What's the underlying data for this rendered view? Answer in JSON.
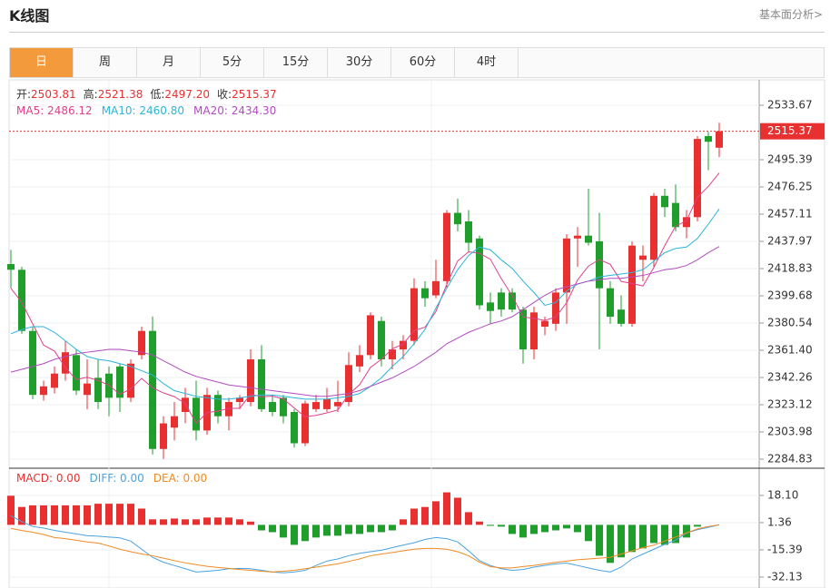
{
  "header": {
    "title": "K线图",
    "link": "基本面分析>"
  },
  "tabs": [
    "日",
    "周",
    "月",
    "5分",
    "15分",
    "30分",
    "60分",
    "4时"
  ],
  "active_tab": 0,
  "chart_data": [
    {
      "type": "candlestick",
      "info": [
        {
          "label": "开:",
          "value": "2503.81"
        },
        {
          "label": "高:",
          "value": "2521.38"
        },
        {
          "label": "低:",
          "value": "2497.20"
        },
        {
          "label": "收:",
          "value": "2515.37"
        }
      ],
      "up_color": "#e93030",
      "down_color": "#1f9e2c",
      "open": [
        2422,
        2418,
        2375,
        2330,
        2335,
        2345,
        2358,
        2330,
        2342,
        2345,
        2350,
        2328,
        2358,
        2375,
        2292,
        2307,
        2318,
        2328,
        2305,
        2330,
        2315,
        2325,
        2325,
        2355,
        2325,
        2328,
        2318,
        2296,
        2320,
        2320,
        2322,
        2325,
        2350,
        2358,
        2382,
        2355,
        2362,
        2368,
        2405,
        2400,
        2410,
        2458,
        2452,
        2440,
        2395,
        2402,
        2402,
        2390,
        2362,
        2378,
        2380,
        2402,
        2440,
        2442,
        2438,
        2405,
        2390,
        2380,
        2425,
        2425,
        2470,
        2465,
        2448,
        2455,
        2512,
        2503.81
      ],
      "high": [
        2432,
        2420,
        2378,
        2340,
        2350,
        2368,
        2362,
        2355,
        2355,
        2350,
        2352,
        2355,
        2378,
        2385,
        2315,
        2325,
        2335,
        2340,
        2335,
        2333,
        2328,
        2330,
        2362,
        2365,
        2330,
        2330,
        2320,
        2326,
        2330,
        2335,
        2340,
        2360,
        2365,
        2388,
        2385,
        2368,
        2372,
        2412,
        2410,
        2425,
        2460,
        2468,
        2460,
        2442,
        2402,
        2405,
        2405,
        2392,
        2392,
        2385,
        2405,
        2443,
        2448,
        2475,
        2458,
        2410,
        2400,
        2438,
        2435,
        2472,
        2475,
        2478,
        2460,
        2512,
        2515,
        2521.38
      ],
      "low": [
        2405,
        2373,
        2327,
        2326,
        2331,
        2340,
        2330,
        2320,
        2320,
        2315,
        2318,
        2325,
        2355,
        2288,
        2285,
        2298,
        2310,
        2298,
        2302,
        2310,
        2305,
        2320,
        2322,
        2318,
        2315,
        2310,
        2293,
        2294,
        2318,
        2318,
        2318,
        2322,
        2346,
        2355,
        2350,
        2348,
        2355,
        2365,
        2392,
        2398,
        2405,
        2445,
        2430,
        2390,
        2380,
        2385,
        2388,
        2352,
        2355,
        2372,
        2375,
        2380,
        2420,
        2435,
        2362,
        2380,
        2378,
        2378,
        2410,
        2420,
        2455,
        2445,
        2440,
        2452,
        2488,
        2497.2
      ],
      "close": [
        2418,
        2375,
        2330,
        2336,
        2345,
        2360,
        2333,
        2338,
        2325,
        2328,
        2328,
        2352,
        2375,
        2292,
        2310,
        2315,
        2328,
        2305,
        2330,
        2315,
        2325,
        2328,
        2355,
        2320,
        2318,
        2315,
        2296,
        2324,
        2325,
        2327,
        2325,
        2351,
        2358,
        2386,
        2355,
        2362,
        2368,
        2405,
        2398,
        2410,
        2458,
        2450,
        2437,
        2393,
        2389,
        2390,
        2390,
        2362,
        2388,
        2382,
        2402,
        2440,
        2442,
        2437,
        2405,
        2385,
        2380,
        2435,
        2428,
        2470,
        2462,
        2448,
        2455,
        2510,
        2508,
        2515.37
      ],
      "series": [
        {
          "name": "MA5: 2486.12",
          "color": "#e0408a",
          "values": [
            2405,
            2395,
            2380,
            2365,
            2360.8,
            2349.2,
            2340.8,
            2342.4,
            2340.2,
            2336.8,
            2330.4,
            2334.2,
            2341.6,
            2335,
            2331.4,
            2328.8,
            2324,
            2310,
            2317.6,
            2318.6,
            2320.6,
            2320.6,
            2330.6,
            2328.6,
            2329.2,
            2327.2,
            2320.8,
            2314.6,
            2315.6,
            2317.4,
            2319.4,
            2330.4,
            2337.2,
            2349.4,
            2355,
            2362.4,
            2365.8,
            2375.2,
            2377.6,
            2388.6,
            2407.8,
            2424.2,
            2430.6,
            2429.6,
            2425.4,
            2411.8,
            2399.8,
            2384.8,
            2383.8,
            2382.4,
            2384.8,
            2394.8,
            2410.8,
            2420.6,
            2425.2,
            2421.8,
            2409.8,
            2408.4,
            2406.6,
            2419.6,
            2435,
            2448.6,
            2452.6,
            2469,
            2476.6,
            2486.12
          ]
        },
        {
          "name": "MA10: 2460.80",
          "color": "#2bb5d8",
          "values": [
            2373,
            2376,
            2378,
            2378,
            2374,
            2368,
            2362,
            2357,
            2355,
            2354,
            2352,
            2350,
            2347,
            2344,
            2338,
            2333,
            2331,
            2329,
            2328,
            2327,
            2327,
            2328,
            2329,
            2330,
            2330,
            2329,
            2328,
            2327,
            2327,
            2327,
            2328,
            2329,
            2331,
            2336,
            2342,
            2350,
            2357,
            2366,
            2376,
            2391,
            2405,
            2418,
            2428,
            2434,
            2432,
            2425,
            2419,
            2410,
            2402,
            2393,
            2395,
            2403,
            2408,
            2410,
            2413,
            2414,
            2415,
            2416,
            2418,
            2424,
            2430,
            2433,
            2434,
            2440,
            2450,
            2460.8
          ]
        },
        {
          "name": "MA20: 2434.30",
          "color": "#b24bc0",
          "values": [
            2346,
            2348,
            2350,
            2352,
            2355,
            2357,
            2359,
            2360,
            2361,
            2362,
            2362,
            2361,
            2360,
            2358,
            2354,
            2350,
            2346,
            2343,
            2341,
            2339,
            2337,
            2336,
            2335,
            2334,
            2333,
            2332,
            2331,
            2330,
            2329,
            2329,
            2330,
            2331,
            2333,
            2336,
            2339,
            2342,
            2346,
            2350,
            2355,
            2360,
            2366,
            2370,
            2374,
            2377,
            2380,
            2382,
            2385,
            2390,
            2395,
            2400,
            2404,
            2406,
            2408,
            2410,
            2411,
            2412,
            2412,
            2413,
            2414,
            2416,
            2418,
            2419,
            2421,
            2425,
            2430,
            2434.3
          ]
        }
      ],
      "ylim": [
        2279.09,
        2550.26
      ],
      "yticks": [
        2533.67,
        2495.39,
        2476.25,
        2457.11,
        2437.97,
        2418.83,
        2399.68,
        2380.54,
        {
          "value": 2361.4,
          "label": "2361.40"
        },
        2342.26,
        2323.12,
        2303.98,
        2284.83
      ],
      "grid": true
    },
    {
      "type": "macd",
      "up_color": "#e93030",
      "down_color": "#1f9e2c",
      "series": [
        {
          "name": "MACD: 0.00",
          "color": "#e93030",
          "values": [
            17.9,
            11,
            12,
            12,
            12,
            12,
            12,
            12,
            13,
            13,
            13,
            13,
            10,
            3.4,
            3.4,
            3.9,
            3.4,
            3.4,
            4.5,
            4.5,
            4.5,
            3.4,
            2,
            -3.4,
            -4.5,
            -7.8,
            -12.3,
            -10,
            -7.8,
            -6.7,
            -6.7,
            -5.6,
            -5.6,
            -4.5,
            -4.5,
            -3.4,
            3.4,
            10,
            11,
            14.5,
            20,
            16.7,
            7.8,
            2,
            -0.6,
            -1.1,
            -5.6,
            -7.8,
            -5.6,
            -4.5,
            -3.4,
            -2.2,
            -4.5,
            -10,
            -19,
            -23.4,
            -20,
            -16.7,
            -14.5,
            -11.2,
            -12.3,
            -11.2,
            -7.8,
            -1.1,
            0,
            0
          ]
        },
        {
          "name": "DIFF: 0.00",
          "color": "#4aa3df",
          "values": [
            5.6,
            2,
            -1,
            -2,
            -3.4,
            -4.5,
            -5.6,
            -6.7,
            -7,
            -7.5,
            -8,
            -10,
            -15,
            -20,
            -23,
            -25,
            -27,
            -29,
            -28.5,
            -28,
            -27,
            -26.8,
            -27,
            -28,
            -29,
            -29.5,
            -29,
            -28,
            -25,
            -22.3,
            -21,
            -19,
            -17.5,
            -16.5,
            -15.6,
            -14,
            -12.5,
            -11,
            -9,
            -7.8,
            -8.5,
            -10.5,
            -16,
            -22,
            -25,
            -27,
            -28,
            -27.5,
            -26,
            -25,
            -24,
            -23.5,
            -25,
            -26.5,
            -28,
            -29,
            -26,
            -21,
            -18,
            -15,
            -12,
            -9.5,
            -5,
            -3,
            -1.5,
            0
          ]
        },
        {
          "name": "DEA: 0.00",
          "color": "#f08a24",
          "values": [
            -2.2,
            -3.5,
            -4.5,
            -6,
            -7.8,
            -8.5,
            -9.5,
            -10.5,
            -11.2,
            -13,
            -15,
            -16.5,
            -17.9,
            -19,
            -20.5,
            -22,
            -23.4,
            -24.5,
            -25.5,
            -26.2,
            -26.8,
            -27.5,
            -28,
            -28.5,
            -29,
            -28.5,
            -28,
            -27,
            -26,
            -25,
            -24,
            -22.5,
            -21,
            -19,
            -18,
            -17,
            -16,
            -15,
            -14.5,
            -14.5,
            -15,
            -16.5,
            -19,
            -23,
            -25.7,
            -26.5,
            -26.5,
            -25.7,
            -25,
            -24,
            -23,
            -22.3,
            -21.5,
            -21,
            -20.5,
            -20,
            -18,
            -16,
            -14,
            -12.5,
            -10,
            -7.5,
            -5,
            -2.5,
            -1,
            0
          ]
        }
      ],
      "ylim": [
        -38.86,
        34.28
      ],
      "yticks": [
        {
          "value": 18.1,
          "label": "18.10"
        },
        1.36,
        -15.39,
        -32.13
      ],
      "grid": true
    }
  ]
}
